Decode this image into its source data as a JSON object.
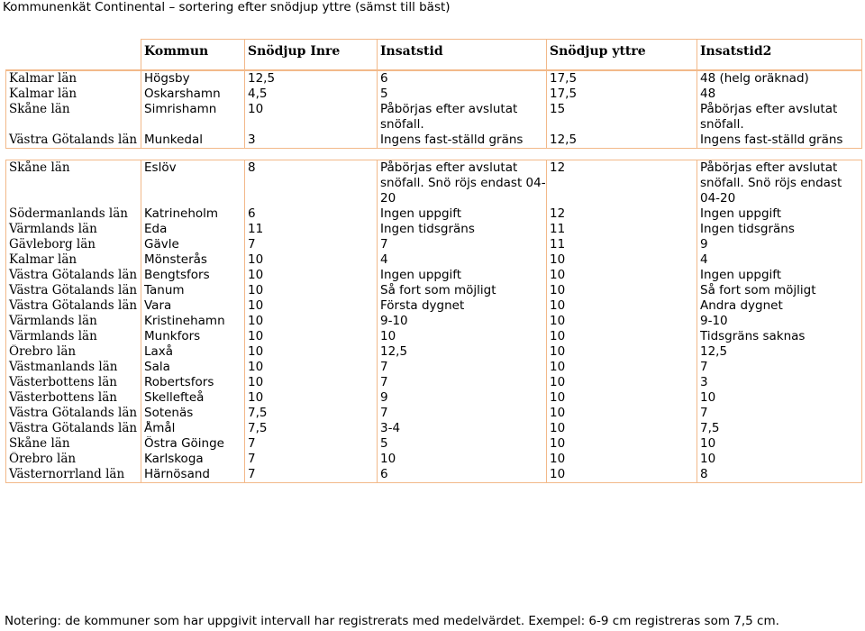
{
  "page": {
    "title": "Kommunenkät Continental – sortering efter snödjup yttre (sämst till bäst)",
    "note": "Notering: de kommuner som har uppgivit intervall har registrerats med medelvärdet. Exempel: 6-9 cm registreras som 7,5 cm."
  },
  "table": {
    "headers": {
      "lan": "",
      "kommun": "Kommun",
      "inre": "Snödjup Inre",
      "insatstid": "Insatstid",
      "yttre": "Snödjup yttre",
      "insatstid2": "Insatstid2"
    },
    "group1": [
      {
        "lan": "Kalmar län",
        "kommun": "Högsby",
        "inre": "12,5",
        "insatstid": "6",
        "yttre": "17,5",
        "insatstid2": "48 (helg oräknad)"
      },
      {
        "lan": "Kalmar län",
        "kommun": "Oskarshamn",
        "inre": "4,5",
        "insatstid": "5",
        "yttre": "17,5",
        "insatstid2": "48"
      },
      {
        "lan": "Skåne län",
        "kommun": "Simrishamn",
        "inre": "10",
        "insatstid": "Påbörjas efter avslutat snöfall.",
        "yttre": "15",
        "insatstid2": "Påbörjas efter avslutat snöfall."
      },
      {
        "lan": "Västra Götalands län",
        "kommun": "Munkedal",
        "inre": "3",
        "insatstid": "Ingens fast-ställd gräns",
        "yttre": "12,5",
        "insatstid2": "Ingens fast-ställd gräns"
      }
    ],
    "group2": [
      {
        "lan": "Skåne län",
        "kommun": "Eslöv",
        "inre": "8",
        "insatstid": "Påbörjas efter avslutat snöfall. Snö röjs endast 04-20",
        "yttre": "12",
        "insatstid2": "Påbörjas efter avslutat snöfall. Snö röjs endast 04-20"
      },
      {
        "lan": "Södermanlands län",
        "kommun": "Katrineholm",
        "inre": "6",
        "insatstid": "Ingen uppgift",
        "yttre": "12",
        "insatstid2": "Ingen uppgift"
      },
      {
        "lan": "Värmlands län",
        "kommun": "Eda",
        "inre": "11",
        "insatstid": "Ingen tidsgräns",
        "yttre": "11",
        "insatstid2": "Ingen tidsgräns"
      },
      {
        "lan": "Gävleborg län",
        "kommun": "Gävle",
        "inre": "7",
        "insatstid": "7",
        "yttre": "11",
        "insatstid2": "9"
      },
      {
        "lan": "Kalmar län",
        "kommun": "Mönsterås",
        "inre": "10",
        "insatstid": "4",
        "yttre": "10",
        "insatstid2": "4"
      },
      {
        "lan": "Västra Götalands län",
        "kommun": "Bengtsfors",
        "inre": "10",
        "insatstid": "Ingen uppgift",
        "yttre": "10",
        "insatstid2": "Ingen uppgift"
      },
      {
        "lan": "Västra Götalands län",
        "kommun": "Tanum",
        "inre": "10",
        "insatstid": "Så fort som möjligt",
        "yttre": "10",
        "insatstid2": "Så fort som möjligt"
      },
      {
        "lan": "Västra Götalands län",
        "kommun": "Vara",
        "inre": "10",
        "insatstid": "Första dygnet",
        "yttre": "10",
        "insatstid2": "Andra dygnet"
      },
      {
        "lan": "Värmlands län",
        "kommun": "Kristinehamn",
        "inre": "10",
        "insatstid": "9-10",
        "yttre": "10",
        "insatstid2": "9-10"
      },
      {
        "lan": "Värmlands län",
        "kommun": "Munkfors",
        "inre": "10",
        "insatstid": "10",
        "yttre": "10",
        "insatstid2": "Tidsgräns saknas"
      },
      {
        "lan": "Örebro län",
        "kommun": "Laxå",
        "inre": "10",
        "insatstid": "12,5",
        "yttre": "10",
        "insatstid2": "12,5"
      },
      {
        "lan": "Västmanlands län",
        "kommun": "Sala",
        "inre": "10",
        "insatstid": "7",
        "yttre": "10",
        "insatstid2": "7"
      },
      {
        "lan": "Västerbottens län",
        "kommun": "Robertsfors",
        "inre": "10",
        "insatstid": "7",
        "yttre": "10",
        "insatstid2": "3"
      },
      {
        "lan": "Västerbottens län",
        "kommun": "Skellefteå",
        "inre": "10",
        "insatstid": "9",
        "yttre": "10",
        "insatstid2": "10"
      },
      {
        "lan": "Västra Götalands län",
        "kommun": "Sotenäs",
        "inre": "7,5",
        "insatstid": "7",
        "yttre": "10",
        "insatstid2": "7"
      },
      {
        "lan": "Västra Götalands län",
        "kommun": "Åmål",
        "inre": "7,5",
        "insatstid": "3-4",
        "yttre": "10",
        "insatstid2": "7,5"
      },
      {
        "lan": "Skåne län",
        "kommun": "Östra Göinge",
        "inre": "7",
        "insatstid": "5",
        "yttre": "10",
        "insatstid2": "10"
      },
      {
        "lan": "Örebro län",
        "kommun": "Karlskoga",
        "inre": "7",
        "insatstid": "10",
        "yttre": "10",
        "insatstid2": "10"
      },
      {
        "lan": "Västernorrland län",
        "kommun": "Härnösand",
        "inre": "7",
        "insatstid": "6",
        "yttre": "10",
        "insatstid2": "8"
      }
    ]
  }
}
